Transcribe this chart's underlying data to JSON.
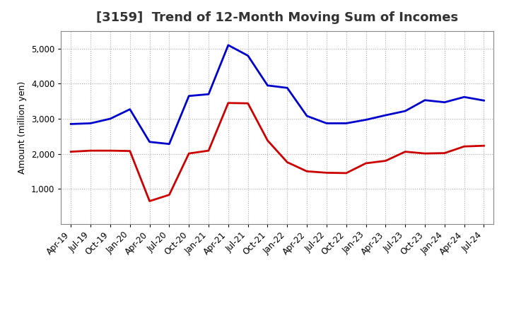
{
  "title": "[3159]  Trend of 12-Month Moving Sum of Incomes",
  "ylabel": "Amount (million yen)",
  "x_labels": [
    "Apr-19",
    "Jul-19",
    "Oct-19",
    "Jan-20",
    "Apr-20",
    "Jul-20",
    "Oct-20",
    "Jan-21",
    "Apr-21",
    "Jul-21",
    "Oct-21",
    "Jan-22",
    "Apr-22",
    "Jul-22",
    "Oct-22",
    "Jan-23",
    "Apr-23",
    "Jul-23",
    "Oct-23",
    "Jan-24",
    "Apr-24",
    "Jul-24"
  ],
  "ordinary_income": [
    2850,
    2870,
    3000,
    3270,
    2340,
    2280,
    3650,
    3700,
    5100,
    4800,
    3950,
    3880,
    3080,
    2870,
    2870,
    2970,
    3100,
    3220,
    3530,
    3470,
    3620,
    3520
  ],
  "net_income": [
    2060,
    2090,
    2090,
    2080,
    650,
    830,
    2010,
    2090,
    3450,
    3440,
    2380,
    1760,
    1500,
    1460,
    1450,
    1730,
    1800,
    2060,
    2010,
    2020,
    2210,
    2230
  ],
  "ordinary_color": "#0000cc",
  "net_color": "#cc0000",
  "background_color": "#ffffff",
  "grid_color": "#aaaaaa",
  "ylim_min": 0,
  "ylim_max": 5500,
  "yticks": [
    1000,
    2000,
    3000,
    4000,
    5000
  ],
  "line_width": 2.0,
  "title_fontsize": 13,
  "axis_fontsize": 9,
  "tick_fontsize": 8.5,
  "legend_fontsize": 10
}
